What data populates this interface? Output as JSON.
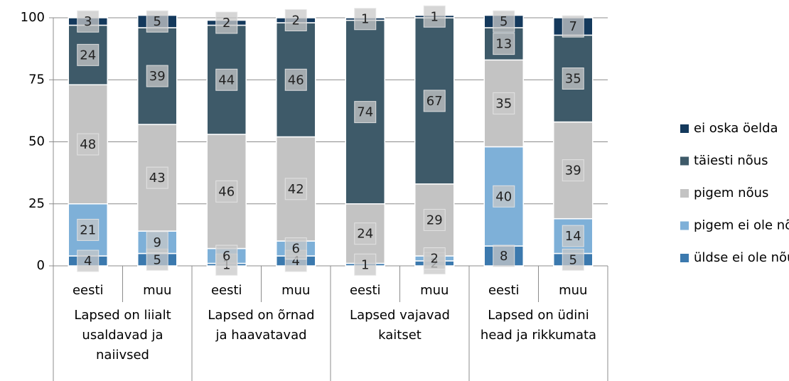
{
  "chart_data": {
    "type": "stacked_bar",
    "categories": [
      "eesti",
      "muu",
      "eesti",
      "muu",
      "eesti",
      "muu",
      "eesti",
      "muu"
    ],
    "groups": [
      [
        "Lapsed on liialt",
        "usaldavad ja",
        "naiivsed"
      ],
      [
        "Lapsed on õrnad",
        "ja haavatavad"
      ],
      [
        "Lapsed vajavad",
        "kaitset"
      ],
      [
        "Lapsed on üdini",
        "head ja rikkumata"
      ]
    ],
    "series": [
      {
        "name": "üldse ei ole nõus",
        "color": "#3b79ae",
        "values": [
          4,
          5,
          1,
          4,
          1,
          2,
          8,
          5
        ]
      },
      {
        "name": "pigem ei ole nõus",
        "color": "#7eb0d8",
        "values": [
          21,
          9,
          6,
          6,
          null,
          2,
          40,
          14
        ]
      },
      {
        "name": "pigem nõus",
        "color": "#c3c3c3",
        "values": [
          48,
          43,
          46,
          42,
          24,
          29,
          35,
          39
        ]
      },
      {
        "name": "täiesti nõus",
        "color": "#3e5a69",
        "values": [
          24,
          39,
          44,
          46,
          74,
          67,
          13,
          35
        ]
      },
      {
        "name": "ei oska öelda",
        "color": "#14395c",
        "values": [
          3,
          5,
          2,
          2,
          1,
          1,
          5,
          7
        ]
      }
    ],
    "ylim": [
      0,
      100
    ],
    "yticks": [
      0,
      25,
      50,
      75,
      100
    ],
    "grid": true,
    "legend": "right"
  }
}
